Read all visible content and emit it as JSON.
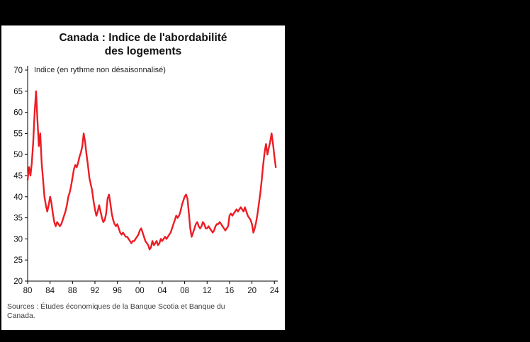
{
  "title": {
    "line1": "Canada : Indice de l'abordabilité",
    "line2": "des logements"
  },
  "annotation": "Indice (en rythme non désaisonnalisé)",
  "source": {
    "line1": "Sources : Études économiques de la Banque Scotia et Banque du",
    "line2": "Canada."
  },
  "colors": {
    "line": "#ed1c24",
    "axis": "#000000",
    "panel_background": "#ffffff",
    "page_background": "#000000"
  },
  "chart_data": {
    "type": "line",
    "title": "Canada : Indice de l'abordabilité des logements",
    "ylabel": "Indice (en rythme non désaisonnalisé)",
    "xlabel": "",
    "xlim": [
      1980,
      2024.6
    ],
    "ylim": [
      20,
      70
    ],
    "grid": false,
    "legend": "none",
    "yticks": [
      20,
      25,
      30,
      35,
      40,
      45,
      50,
      55,
      60,
      65,
      70
    ],
    "xticks": [
      {
        "v": 1980,
        "label": "80"
      },
      {
        "v": 1984,
        "label": "84"
      },
      {
        "v": 1988,
        "label": "88"
      },
      {
        "v": 1992,
        "label": "92"
      },
      {
        "v": 1996,
        "label": "96"
      },
      {
        "v": 2000,
        "label": "00"
      },
      {
        "v": 2004,
        "label": "04"
      },
      {
        "v": 2008,
        "label": "08"
      },
      {
        "v": 2012,
        "label": "12"
      },
      {
        "v": 2016,
        "label": "16"
      },
      {
        "v": 2020,
        "label": "20"
      },
      {
        "v": 2024,
        "label": "24"
      }
    ],
    "series": [
      {
        "name": "Indice de l'abordabilité des logements",
        "color": "#ed1c24",
        "points": [
          [
            1980.0,
            44
          ],
          [
            1980.25,
            47
          ],
          [
            1980.5,
            45
          ],
          [
            1980.75,
            48
          ],
          [
            1981.0,
            53
          ],
          [
            1981.25,
            60
          ],
          [
            1981.5,
            65
          ],
          [
            1981.75,
            58
          ],
          [
            1982.0,
            52
          ],
          [
            1982.25,
            55
          ],
          [
            1982.5,
            48
          ],
          [
            1982.75,
            44
          ],
          [
            1983.0,
            40
          ],
          [
            1983.25,
            38
          ],
          [
            1983.5,
            36.5
          ],
          [
            1983.75,
            38
          ],
          [
            1984.0,
            40
          ],
          [
            1984.25,
            38.5
          ],
          [
            1984.5,
            36
          ],
          [
            1984.75,
            34
          ],
          [
            1985.0,
            33
          ],
          [
            1985.25,
            34
          ],
          [
            1985.5,
            33.5
          ],
          [
            1985.75,
            33
          ],
          [
            1986.0,
            33.5
          ],
          [
            1986.25,
            34.5
          ],
          [
            1986.5,
            35.5
          ],
          [
            1986.75,
            36.5
          ],
          [
            1987.0,
            38
          ],
          [
            1987.25,
            40
          ],
          [
            1987.5,
            41
          ],
          [
            1987.75,
            42.5
          ],
          [
            1988.0,
            44.5
          ],
          [
            1988.25,
            46.5
          ],
          [
            1988.5,
            47.5
          ],
          [
            1988.75,
            47
          ],
          [
            1989.0,
            48
          ],
          [
            1989.25,
            49.5
          ],
          [
            1989.5,
            50.5
          ],
          [
            1989.75,
            52
          ],
          [
            1990.0,
            55
          ],
          [
            1990.25,
            53
          ],
          [
            1990.5,
            50
          ],
          [
            1990.75,
            47.5
          ],
          [
            1991.0,
            44.5
          ],
          [
            1991.25,
            43
          ],
          [
            1991.5,
            41.5
          ],
          [
            1991.75,
            39
          ],
          [
            1992.0,
            37
          ],
          [
            1992.25,
            35.5
          ],
          [
            1992.5,
            36.5
          ],
          [
            1992.75,
            38
          ],
          [
            1993.0,
            36.5
          ],
          [
            1993.25,
            35
          ],
          [
            1993.5,
            34
          ],
          [
            1993.75,
            34.5
          ],
          [
            1994.0,
            36
          ],
          [
            1994.25,
            39.5
          ],
          [
            1994.5,
            40.5
          ],
          [
            1994.75,
            38.5
          ],
          [
            1995.0,
            36
          ],
          [
            1995.25,
            34.5
          ],
          [
            1995.5,
            33.5
          ],
          [
            1995.75,
            33
          ],
          [
            1996.0,
            33.5
          ],
          [
            1996.25,
            32.5
          ],
          [
            1996.5,
            31.5
          ],
          [
            1996.75,
            31
          ],
          [
            1997.0,
            31.5
          ],
          [
            1997.25,
            31
          ],
          [
            1997.5,
            30.5
          ],
          [
            1997.75,
            30.5
          ],
          [
            1998.0,
            30
          ],
          [
            1998.25,
            29.5
          ],
          [
            1998.5,
            29
          ],
          [
            1998.75,
            29.5
          ],
          [
            1999.0,
            29.5
          ],
          [
            1999.25,
            30
          ],
          [
            1999.5,
            30.5
          ],
          [
            1999.75,
            31
          ],
          [
            2000.0,
            32
          ],
          [
            2000.25,
            32.5
          ],
          [
            2000.5,
            31.5
          ],
          [
            2000.75,
            30.5
          ],
          [
            2001.0,
            29.5
          ],
          [
            2001.25,
            29
          ],
          [
            2001.5,
            28.5
          ],
          [
            2001.75,
            27.5
          ],
          [
            2002.0,
            28
          ],
          [
            2002.25,
            29.5
          ],
          [
            2002.5,
            28.5
          ],
          [
            2002.75,
            29
          ],
          [
            2003.0,
            29.5
          ],
          [
            2003.25,
            28.5
          ],
          [
            2003.5,
            29
          ],
          [
            2003.75,
            30
          ],
          [
            2004.0,
            29.5
          ],
          [
            2004.25,
            30
          ],
          [
            2004.5,
            30.5
          ],
          [
            2004.75,
            30
          ],
          [
            2005.0,
            30.5
          ],
          [
            2005.25,
            31
          ],
          [
            2005.5,
            31.5
          ],
          [
            2005.75,
            32.5
          ],
          [
            2006.0,
            33.5
          ],
          [
            2006.25,
            34.5
          ],
          [
            2006.5,
            35.5
          ],
          [
            2006.75,
            35
          ],
          [
            2007.0,
            35.5
          ],
          [
            2007.25,
            36.5
          ],
          [
            2007.5,
            38
          ],
          [
            2007.75,
            39
          ],
          [
            2008.0,
            40
          ],
          [
            2008.25,
            40.5
          ],
          [
            2008.5,
            39.5
          ],
          [
            2008.75,
            36
          ],
          [
            2009.0,
            32.5
          ],
          [
            2009.25,
            30.5
          ],
          [
            2009.5,
            31.5
          ],
          [
            2009.75,
            32.5
          ],
          [
            2010.0,
            33.5
          ],
          [
            2010.25,
            34
          ],
          [
            2010.5,
            33
          ],
          [
            2010.75,
            32.5
          ],
          [
            2011.0,
            33
          ],
          [
            2011.25,
            34
          ],
          [
            2011.5,
            33.5
          ],
          [
            2011.75,
            32.5
          ],
          [
            2012.0,
            32.5
          ],
          [
            2012.25,
            33
          ],
          [
            2012.5,
            32.5
          ],
          [
            2012.75,
            32
          ],
          [
            2013.0,
            31.5
          ],
          [
            2013.25,
            32
          ],
          [
            2013.5,
            33
          ],
          [
            2013.75,
            33.5
          ],
          [
            2014.0,
            33.5
          ],
          [
            2014.25,
            34
          ],
          [
            2014.5,
            33.5
          ],
          [
            2014.75,
            33
          ],
          [
            2015.0,
            32.5
          ],
          [
            2015.25,
            32
          ],
          [
            2015.5,
            32.5
          ],
          [
            2015.75,
            33
          ],
          [
            2016.0,
            35.5
          ],
          [
            2016.25,
            36
          ],
          [
            2016.5,
            35.5
          ],
          [
            2016.75,
            36
          ],
          [
            2017.0,
            36.5
          ],
          [
            2017.25,
            37
          ],
          [
            2017.5,
            36.5
          ],
          [
            2017.75,
            37
          ],
          [
            2018.0,
            37.5
          ],
          [
            2018.25,
            37
          ],
          [
            2018.5,
            36.5
          ],
          [
            2018.75,
            37.5
          ],
          [
            2019.0,
            36.5
          ],
          [
            2019.25,
            35.5
          ],
          [
            2019.5,
            35
          ],
          [
            2019.75,
            34.5
          ],
          [
            2020.0,
            33.5
          ],
          [
            2020.25,
            31.5
          ],
          [
            2020.5,
            32.5
          ],
          [
            2020.75,
            34
          ],
          [
            2021.0,
            36
          ],
          [
            2021.25,
            38.5
          ],
          [
            2021.5,
            41
          ],
          [
            2021.75,
            44
          ],
          [
            2022.0,
            47.5
          ],
          [
            2022.25,
            50.5
          ],
          [
            2022.5,
            52.5
          ],
          [
            2022.75,
            50
          ],
          [
            2023.0,
            51.5
          ],
          [
            2023.25,
            53
          ],
          [
            2023.5,
            55
          ],
          [
            2023.75,
            52.5
          ],
          [
            2024.0,
            49.5
          ],
          [
            2024.25,
            47
          ]
        ]
      }
    ]
  }
}
